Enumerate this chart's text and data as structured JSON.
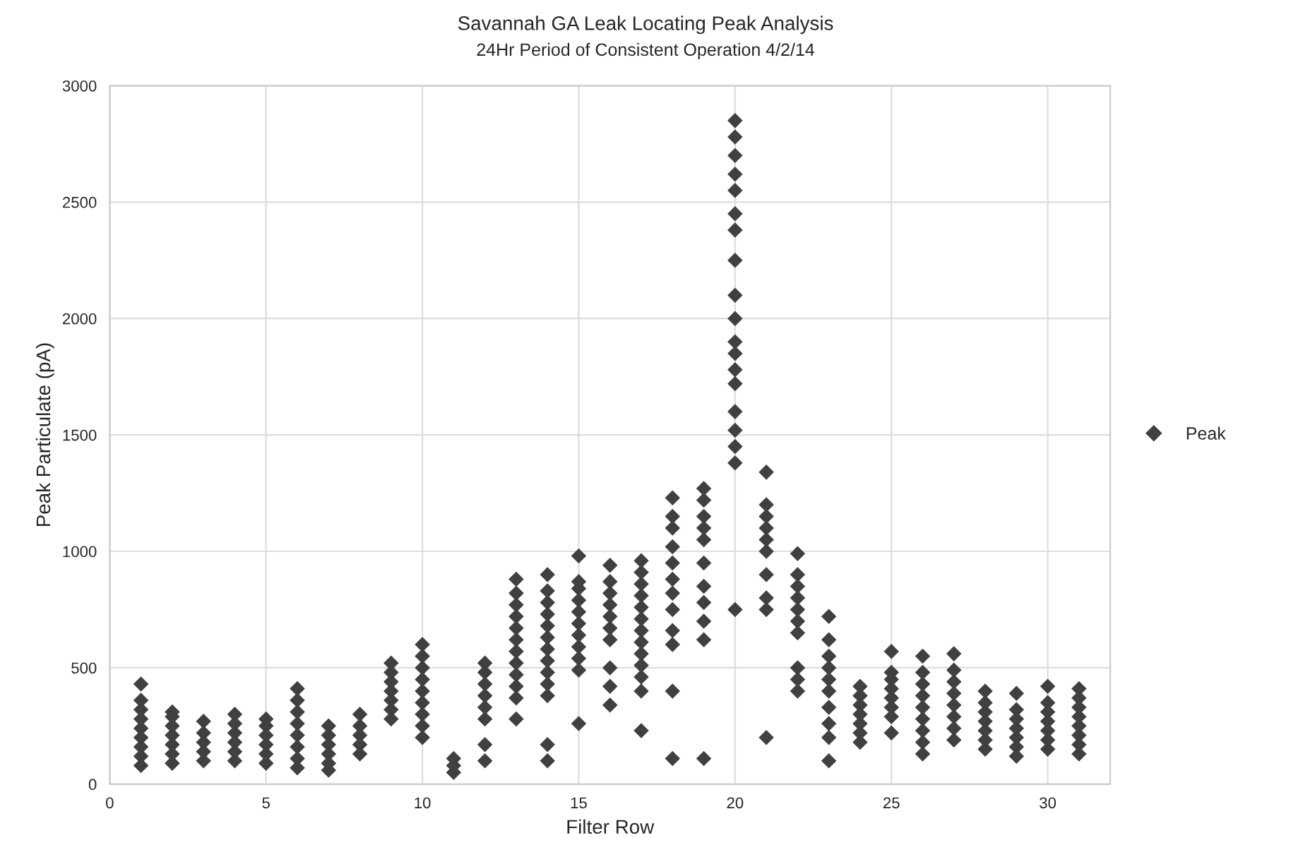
{
  "chart_data": {
    "type": "scatter",
    "title": "Savannah GA Leak Locating Peak Analysis",
    "subtitle": "24Hr Period of Consistent Operation 4/2/14",
    "xlabel": "Filter Row",
    "ylabel": "Peak Particulate (pA)",
    "xlim": [
      0,
      32
    ],
    "xticks": [
      0,
      5,
      10,
      15,
      20,
      25,
      30
    ],
    "ylim": [
      0,
      3000
    ],
    "yticks": [
      0,
      500,
      1000,
      1500,
      2000,
      2500,
      3000
    ],
    "grid": true,
    "legend": "right",
    "marker": "diamond",
    "series": [
      {
        "name": "Peak",
        "color": "#404040",
        "x": [
          1,
          1,
          1,
          1,
          1,
          1,
          1,
          1,
          1,
          2,
          2,
          2,
          2,
          2,
          2,
          2,
          3,
          3,
          3,
          3,
          3,
          4,
          4,
          4,
          4,
          4,
          4,
          5,
          5,
          5,
          5,
          5,
          5,
          6,
          6,
          6,
          6,
          6,
          6,
          6,
          6,
          7,
          7,
          7,
          7,
          7,
          7,
          8,
          8,
          8,
          8,
          8,
          9,
          9,
          9,
          9,
          9,
          9,
          9,
          10,
          10,
          10,
          10,
          10,
          10,
          10,
          10,
          10,
          11,
          11,
          11,
          12,
          12,
          12,
          12,
          12,
          12,
          12,
          12,
          13,
          13,
          13,
          13,
          13,
          13,
          13,
          13,
          13,
          13,
          13,
          13,
          14,
          14,
          14,
          14,
          14,
          14,
          14,
          14,
          14,
          14,
          14,
          14,
          14,
          15,
          15,
          15,
          15,
          15,
          15,
          15,
          15,
          15,
          15,
          15,
          16,
          16,
          16,
          16,
          16,
          16,
          16,
          16,
          16,
          16,
          17,
          17,
          17,
          17,
          17,
          17,
          17,
          17,
          17,
          17,
          17,
          17,
          17,
          18,
          18,
          18,
          18,
          18,
          18,
          18,
          18,
          18,
          18,
          18,
          18,
          19,
          19,
          19,
          19,
          19,
          19,
          19,
          19,
          19,
          19,
          19,
          20,
          20,
          20,
          20,
          20,
          20,
          20,
          20,
          20,
          20,
          20,
          20,
          20,
          20,
          20,
          20,
          20,
          20,
          20,
          21,
          21,
          21,
          21,
          21,
          21,
          21,
          21,
          21,
          21,
          22,
          22,
          22,
          22,
          22,
          22,
          22,
          22,
          22,
          22,
          23,
          23,
          23,
          23,
          23,
          23,
          23,
          23,
          23,
          23,
          24,
          24,
          24,
          24,
          24,
          24,
          24,
          25,
          25,
          25,
          25,
          25,
          25,
          25,
          25,
          26,
          26,
          26,
          26,
          26,
          26,
          26,
          26,
          26,
          27,
          27,
          27,
          27,
          27,
          27,
          27,
          27,
          28,
          28,
          28,
          28,
          28,
          28,
          28,
          29,
          29,
          29,
          29,
          29,
          29,
          29,
          30,
          30,
          30,
          30,
          30,
          30,
          30,
          31,
          31,
          31,
          31,
          31,
          31,
          31,
          31
        ],
        "values": [
          80,
          120,
          160,
          200,
          240,
          280,
          320,
          360,
          430,
          90,
          130,
          170,
          210,
          250,
          290,
          310,
          100,
          140,
          180,
          220,
          270,
          100,
          140,
          180,
          220,
          260,
          300,
          90,
          130,
          170,
          210,
          250,
          280,
          70,
          110,
          160,
          210,
          260,
          310,
          360,
          410,
          60,
          90,
          130,
          170,
          210,
          250,
          130,
          170,
          210,
          250,
          300,
          280,
          320,
          360,
          400,
          440,
          480,
          520,
          200,
          250,
          300,
          350,
          400,
          450,
          500,
          550,
          600,
          50,
          80,
          110,
          100,
          170,
          280,
          330,
          380,
          430,
          480,
          520,
          280,
          370,
          420,
          470,
          520,
          570,
          620,
          670,
          720,
          770,
          820,
          880,
          100,
          170,
          380,
          430,
          480,
          530,
          580,
          630,
          680,
          730,
          780,
          830,
          900,
          260,
          490,
          540,
          590,
          640,
          690,
          740,
          790,
          840,
          870,
          980,
          340,
          420,
          500,
          620,
          670,
          720,
          770,
          820,
          870,
          940,
          230,
          400,
          460,
          510,
          560,
          610,
          660,
          710,
          760,
          810,
          860,
          910,
          960,
          110,
          400,
          600,
          660,
          750,
          820,
          880,
          950,
          1020,
          1100,
          1150,
          1230,
          110,
          620,
          700,
          780,
          850,
          950,
          1050,
          1100,
          1150,
          1220,
          1270,
          750,
          1380,
          1450,
          1520,
          1600,
          1720,
          1780,
          1850,
          1900,
          2000,
          2100,
          2250,
          2380,
          2450,
          2550,
          2620,
          2700,
          2780,
          2850,
          200,
          750,
          800,
          900,
          1000,
          1050,
          1100,
          1150,
          1200,
          1340,
          400,
          450,
          500,
          650,
          700,
          750,
          800,
          850,
          900,
          990,
          100,
          200,
          260,
          330,
          400,
          450,
          500,
          550,
          620,
          720,
          180,
          220,
          260,
          300,
          340,
          380,
          420,
          220,
          290,
          330,
          370,
          410,
          450,
          480,
          570,
          130,
          180,
          230,
          280,
          330,
          380,
          430,
          480,
          550,
          190,
          240,
          290,
          340,
          390,
          440,
          490,
          560,
          150,
          190,
          230,
          270,
          310,
          350,
          400,
          120,
          160,
          200,
          240,
          280,
          320,
          390,
          150,
          190,
          230,
          270,
          310,
          350,
          420,
          130,
          170,
          210,
          250,
          290,
          330,
          370,
          410
        ]
      }
    ]
  }
}
